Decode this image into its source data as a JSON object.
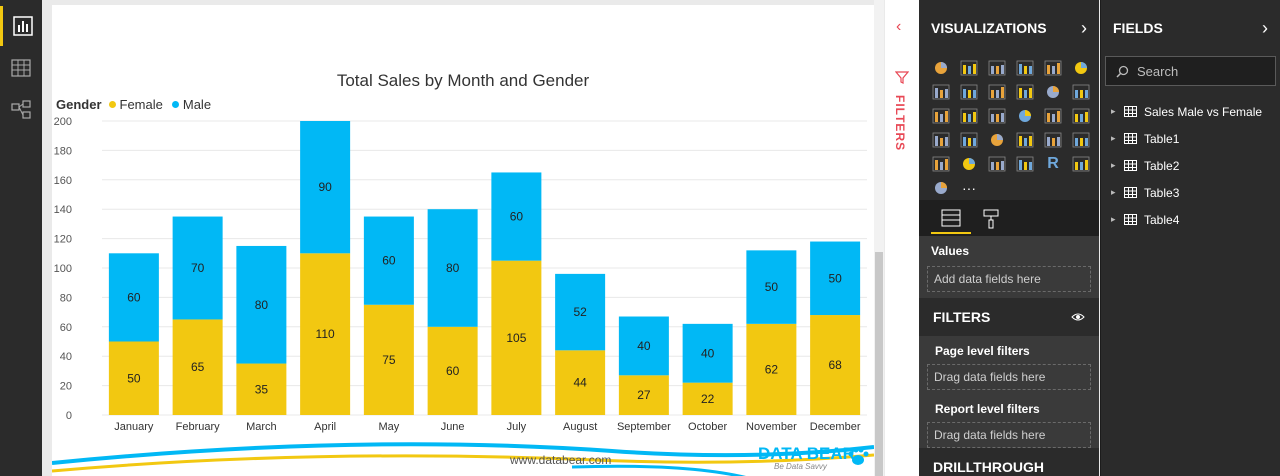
{
  "colors": {
    "female": "#f2c811",
    "male": "#01b8f5",
    "accent": "#f2c811",
    "filters_red": "#e84855"
  },
  "rail": {
    "icons": [
      "report-view-icon",
      "data-view-icon",
      "model-view-icon"
    ]
  },
  "chart_data": {
    "type": "bar",
    "stacked": true,
    "title": "Total Sales by Month and Gender",
    "legend_title": "Gender",
    "legend_position": "top-left",
    "categories": [
      "January",
      "February",
      "March",
      "April",
      "May",
      "June",
      "July",
      "August",
      "September",
      "October",
      "November",
      "December"
    ],
    "series": [
      {
        "name": "Female",
        "values": [
          50,
          65,
          35,
          110,
          75,
          60,
          105,
          44,
          27,
          22,
          62,
          68
        ]
      },
      {
        "name": "Male",
        "values": [
          60,
          70,
          80,
          90,
          60,
          80,
          60,
          52,
          40,
          40,
          50,
          50
        ]
      }
    ],
    "ylim": [
      0,
      200
    ],
    "yticks": [
      "0",
      "20",
      "40",
      "60",
      "80",
      "100",
      "120",
      "140",
      "160",
      "180",
      "200"
    ],
    "grid": true
  },
  "footer": {
    "url": "www.databear.com",
    "brand": "DATA BEAR",
    "tagline": "Be Data Savvy"
  },
  "filter_strip": {
    "label": "FILTERS"
  },
  "visualizations": {
    "title": "VISUALIZATIONS",
    "more_label": "···",
    "values_label": "Values",
    "values_placeholder": "Add data fields here",
    "filters_title": "FILTERS",
    "page_level_label": "Page level filters",
    "page_level_placeholder": "Drag data fields here",
    "report_level_label": "Report level filters",
    "report_level_placeholder": "Drag data fields here",
    "drillthrough_title": "DRILLTHROUGH"
  },
  "fields": {
    "title": "FIELDS",
    "search_placeholder": "Search",
    "tables": [
      "Sales Male vs Female",
      "Table1",
      "Table2",
      "Table3",
      "Table4"
    ]
  }
}
